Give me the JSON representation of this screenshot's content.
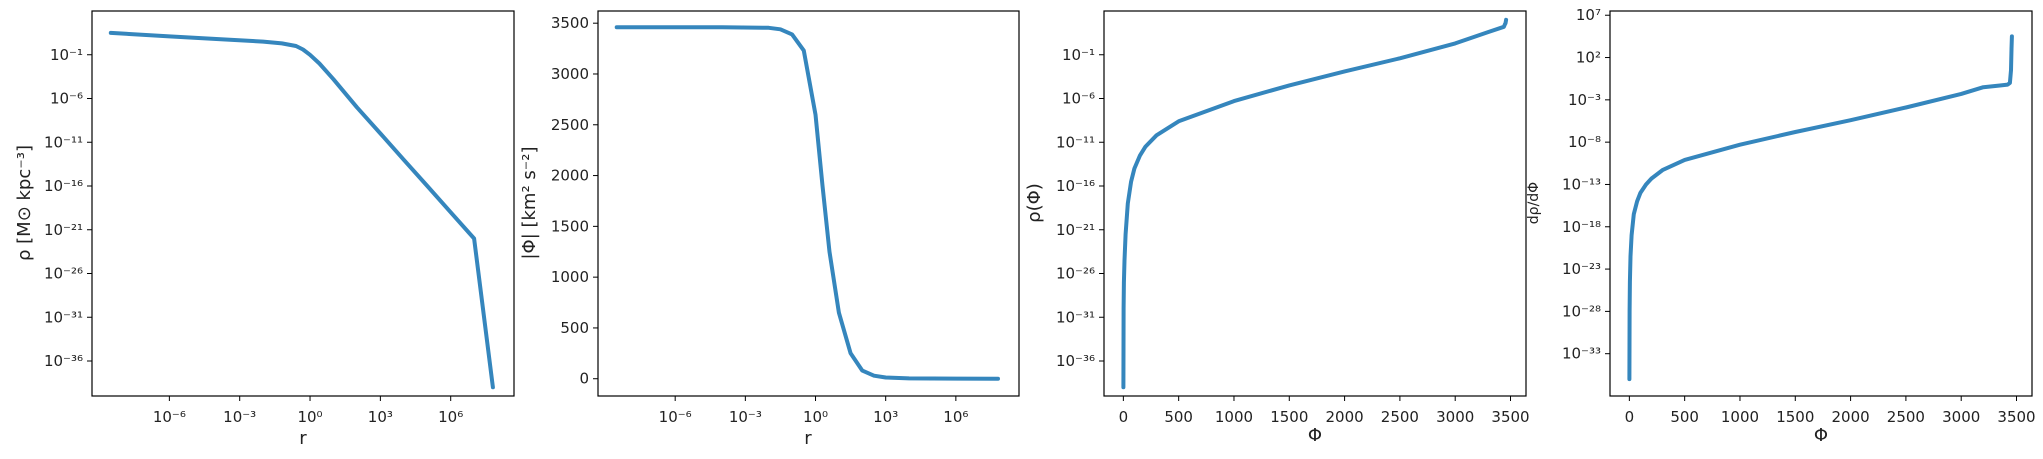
{
  "chart_data": [
    {
      "type": "line",
      "xscale": "log",
      "yscale": "log",
      "xlabel": "r",
      "ylabel": "ρ [M⊙ kpc⁻³]",
      "xlim_log10": [
        -9.3,
        8.7
      ],
      "ylim_log10": [
        -40,
        4
      ],
      "xticks": [
        {
          "v": -6,
          "label": "10⁻⁶"
        },
        {
          "v": -3,
          "label": "10⁻³"
        },
        {
          "v": 0,
          "label": "10⁰"
        },
        {
          "v": 3,
          "label": "10³"
        },
        {
          "v": 6,
          "label": "10⁶"
        }
      ],
      "yticks": [
        {
          "v": -1,
          "label": "10⁻¹"
        },
        {
          "v": -6,
          "label": "10⁻⁶"
        },
        {
          "v": -11,
          "label": "10⁻¹¹"
        },
        {
          "v": -16,
          "label": "10⁻¹⁶"
        },
        {
          "v": -21,
          "label": "10⁻²¹"
        },
        {
          "v": -26,
          "label": "10⁻²⁶"
        },
        {
          "v": -31,
          "label": "10⁻³¹"
        },
        {
          "v": -36,
          "label": "10⁻³⁶"
        }
      ],
      "series": [
        {
          "x_log10": [
            -8.5,
            -6,
            -4,
            -2,
            -1.2,
            -0.6,
            -0.3,
            0,
            0.4,
            1,
            2,
            3,
            4,
            5,
            6,
            7,
            7.8
          ],
          "y_log10": [
            1.5,
            1.1,
            0.8,
            0.5,
            0.3,
            0.0,
            -0.4,
            -1.0,
            -2.0,
            -3.8,
            -7.0,
            -10.0,
            -13.0,
            -16.0,
            -19.0,
            -22.0,
            -39.0
          ]
        }
      ]
    },
    {
      "type": "line",
      "xscale": "log",
      "yscale": "linear",
      "xlabel": "r",
      "ylabel": "|Φ| [km² s⁻²]",
      "xlim_log10": [
        -9.3,
        8.7
      ],
      "ylim": [
        -170,
        3620
      ],
      "xticks": [
        {
          "v": -6,
          "label": "10⁻⁶"
        },
        {
          "v": -3,
          "label": "10⁻³"
        },
        {
          "v": 0,
          "label": "10⁰"
        },
        {
          "v": 3,
          "label": "10³"
        },
        {
          "v": 6,
          "label": "10⁶"
        }
      ],
      "yticks": [
        {
          "v": 0,
          "label": "0"
        },
        {
          "v": 500,
          "label": "500"
        },
        {
          "v": 1000,
          "label": "1000"
        },
        {
          "v": 1500,
          "label": "1500"
        },
        {
          "v": 2000,
          "label": "2000"
        },
        {
          "v": 2500,
          "label": "2500"
        },
        {
          "v": 3000,
          "label": "3000"
        },
        {
          "v": 3500,
          "label": "3500"
        }
      ],
      "series": [
        {
          "x_log10": [
            -8.5,
            -4,
            -2,
            -1.5,
            -1,
            -0.5,
            0,
            0.3,
            0.6,
            1,
            1.5,
            2,
            2.5,
            3,
            4,
            6,
            7.8
          ],
          "y": [
            3460,
            3460,
            3455,
            3440,
            3390,
            3230,
            2600,
            1900,
            1250,
            650,
            250,
            80,
            30,
            12,
            3,
            1,
            0
          ]
        }
      ]
    },
    {
      "type": "line",
      "xscale": "linear",
      "yscale": "log",
      "xlabel": "Φ",
      "ylabel": "ρ(Φ)",
      "xlim": [
        -175,
        3640
      ],
      "ylim_log10": [
        -40,
        4
      ],
      "xticks": [
        {
          "v": 0,
          "label": "0"
        },
        {
          "v": 500,
          "label": "500"
        },
        {
          "v": 1000,
          "label": "1000"
        },
        {
          "v": 1500,
          "label": "1500"
        },
        {
          "v": 2000,
          "label": "2000"
        },
        {
          "v": 2500,
          "label": "2500"
        },
        {
          "v": 3000,
          "label": "3000"
        },
        {
          "v": 3500,
          "label": "3500"
        }
      ],
      "yticks": [
        {
          "v": -1,
          "label": "10⁻¹"
        },
        {
          "v": -6,
          "label": "10⁻⁶"
        },
        {
          "v": -11,
          "label": "10⁻¹¹"
        },
        {
          "v": -16,
          "label": "10⁻¹⁶"
        },
        {
          "v": -21,
          "label": "10⁻²¹"
        },
        {
          "v": -26,
          "label": "10⁻²⁶"
        },
        {
          "v": -31,
          "label": "10⁻³¹"
        },
        {
          "v": -36,
          "label": "10⁻³⁶"
        }
      ],
      "series": [
        {
          "x": [
            0,
            2,
            5,
            10,
            20,
            40,
            70,
            100,
            150,
            200,
            300,
            500,
            1000,
            1500,
            2000,
            2500,
            3000,
            3300,
            3440,
            3450,
            3455,
            3460
          ],
          "y_log10": [
            -39,
            -30,
            -27,
            -24.5,
            -21.5,
            -18,
            -15.5,
            -14,
            -12.5,
            -11.5,
            -10.2,
            -8.6,
            -6.3,
            -4.5,
            -2.9,
            -1.4,
            0.3,
            1.6,
            2.2,
            2.5,
            2.6,
            3.0
          ]
        }
      ]
    },
    {
      "type": "line",
      "xscale": "linear",
      "yscale": "log",
      "xlabel": "Φ",
      "ylabel": "dρ/dΦ",
      "xlim": [
        -175,
        3640
      ],
      "ylim_log10": [
        -38,
        7.5
      ],
      "xticks": [
        {
          "v": 0,
          "label": "0"
        },
        {
          "v": 500,
          "label": "500"
        },
        {
          "v": 1000,
          "label": "1000"
        },
        {
          "v": 1500,
          "label": "1500"
        },
        {
          "v": 2000,
          "label": "2000"
        },
        {
          "v": 2500,
          "label": "2500"
        },
        {
          "v": 3000,
          "label": "3000"
        },
        {
          "v": 3500,
          "label": "3500"
        }
      ],
      "yticks": [
        {
          "v": 7,
          "label": "10⁷"
        },
        {
          "v": 2,
          "label": "10²"
        },
        {
          "v": -3,
          "label": "10⁻³"
        },
        {
          "v": -8,
          "label": "10⁻⁸"
        },
        {
          "v": -13,
          "label": "10⁻¹³"
        },
        {
          "v": -18,
          "label": "10⁻¹⁸"
        },
        {
          "v": -23,
          "label": "10⁻²³"
        },
        {
          "v": -28,
          "label": "10⁻²⁸"
        },
        {
          "v": -33,
          "label": "10⁻³³"
        }
      ],
      "series": [
        {
          "x": [
            0,
            2,
            5,
            10,
            20,
            40,
            70,
            100,
            150,
            200,
            300,
            500,
            1000,
            1500,
            2000,
            2500,
            3000,
            3200,
            3350,
            3420,
            3440,
            3450,
            3455,
            3458
          ],
          "y_log10": [
            -36,
            -28,
            -24.5,
            -21.5,
            -19,
            -16.5,
            -15,
            -14,
            -13,
            -12.3,
            -11.3,
            -10.1,
            -8.3,
            -6.8,
            -5.4,
            -3.9,
            -2.3,
            -1.5,
            -1.3,
            -1.2,
            -1.0,
            0.5,
            3,
            4.5
          ]
        }
      ]
    }
  ],
  "colors": {
    "line": "#3586bd",
    "axis": "#000000"
  }
}
